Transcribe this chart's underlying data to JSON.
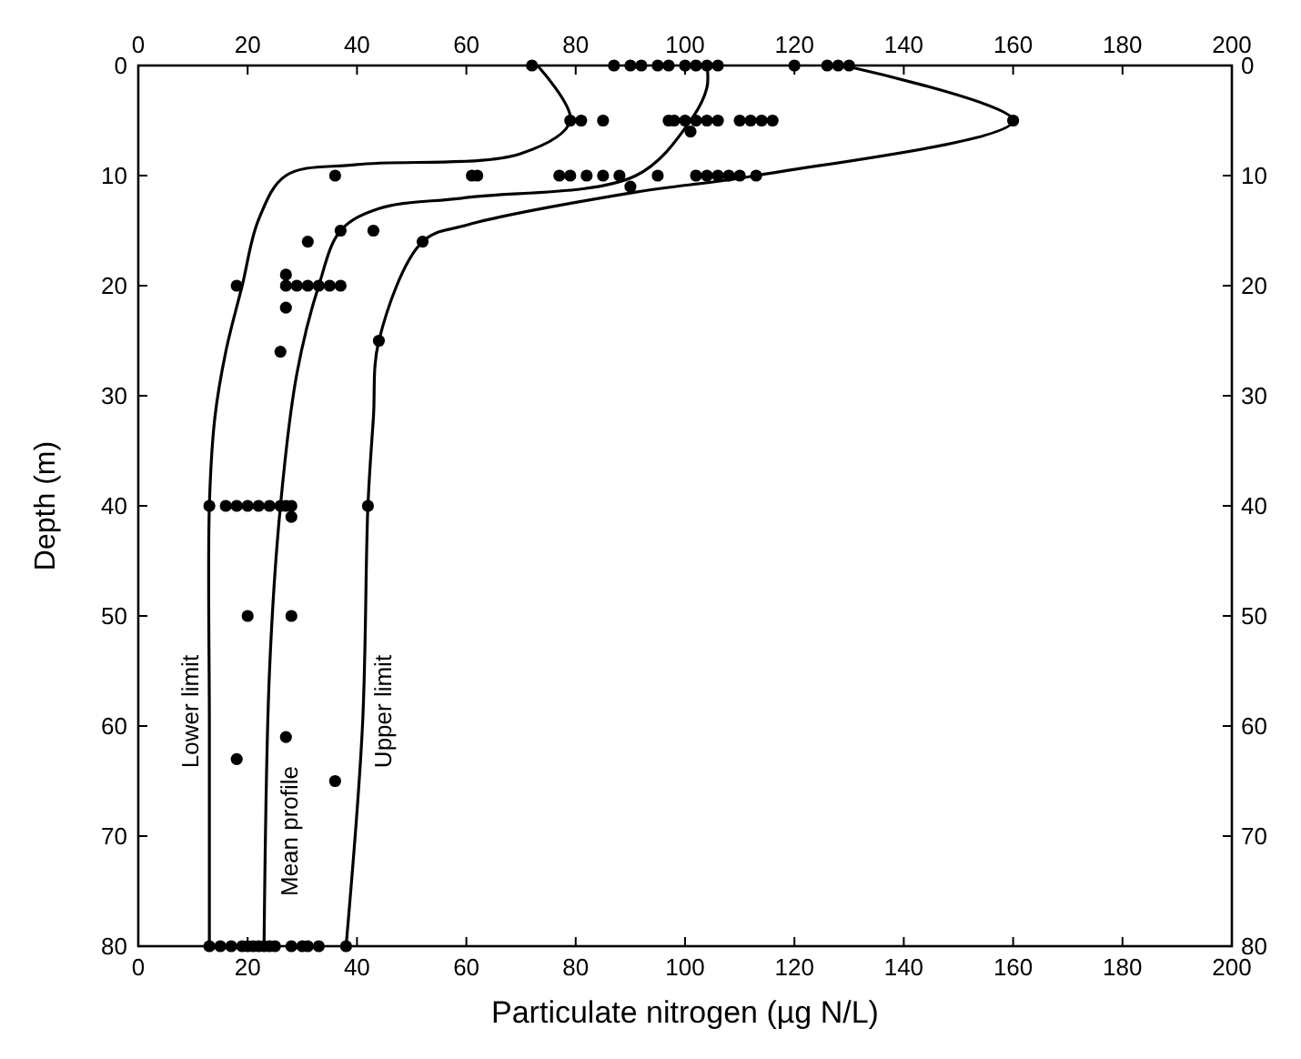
{
  "chart_data": {
    "type": "scatter",
    "xlabel": "Particulate nitrogen (µg N/L)",
    "ylabel": "Depth (m)",
    "xlim": [
      0,
      200
    ],
    "xticks": [
      0,
      20,
      40,
      60,
      80,
      100,
      120,
      140,
      160,
      180,
      200
    ],
    "x2lim": [
      0,
      200
    ],
    "x2ticks": [
      0,
      20,
      40,
      60,
      80,
      100,
      120,
      140,
      160,
      180,
      200
    ],
    "ylim": [
      80,
      0
    ],
    "yticks": [
      0,
      10,
      20,
      30,
      40,
      50,
      60,
      70,
      80
    ],
    "y2lim": [
      80,
      0
    ],
    "y2ticks": [
      0,
      10,
      20,
      30,
      40,
      50,
      60,
      70,
      80
    ],
    "grid": false,
    "series": [
      {
        "color": "#000000",
        "marker": "circle",
        "x": [
          72,
          87,
          90,
          92,
          95,
          97,
          100,
          102,
          104,
          106,
          120,
          126,
          128,
          130,
          79,
          81,
          85,
          97,
          98,
          100,
          102,
          104,
          106,
          110,
          112,
          114,
          116,
          160,
          101,
          36,
          61,
          62,
          77,
          79,
          82,
          85,
          88,
          95,
          102,
          104,
          106,
          108,
          110,
          113,
          90,
          31,
          37,
          43,
          52,
          27,
          18,
          27,
          29,
          31,
          33,
          35,
          37,
          27,
          44,
          26,
          13,
          16,
          18,
          20,
          22,
          24,
          26,
          27,
          28,
          42,
          28,
          20,
          28,
          18,
          27,
          36,
          13,
          15,
          17,
          19,
          20,
          21,
          22,
          23,
          24,
          25,
          28,
          30,
          31,
          33,
          38
        ],
        "values": [
          0,
          0,
          0,
          0,
          0,
          0,
          0,
          0,
          0,
          0,
          0,
          0,
          0,
          0,
          5,
          5,
          5,
          5,
          5,
          5,
          5,
          5,
          5,
          5,
          5,
          5,
          5,
          5,
          6,
          10,
          10,
          10,
          10,
          10,
          10,
          10,
          10,
          10,
          10,
          10,
          10,
          10,
          10,
          10,
          11,
          16,
          15,
          15,
          16,
          19,
          20,
          20,
          20,
          20,
          20,
          20,
          20,
          22,
          25,
          26,
          40,
          40,
          40,
          40,
          40,
          40,
          40,
          40,
          40,
          40,
          41,
          50,
          50,
          63,
          61,
          65,
          80,
          80,
          80,
          80,
          80,
          80,
          80,
          80,
          80,
          80,
          80,
          80,
          80,
          80,
          80
        ]
      },
      {
        "type": "line",
        "name": "Lower limit",
        "color": "#000000",
        "marker": "none",
        "line_style": "solid",
        "x": [
          73,
          79,
          70,
          40,
          27,
          22,
          19,
          16,
          14,
          13,
          13,
          13
        ],
        "values": [
          0,
          5,
          8,
          9,
          10,
          14,
          20,
          26,
          32,
          40,
          60,
          80
        ]
      },
      {
        "type": "line",
        "name": "Mean profile",
        "color": "#000000",
        "marker": "none",
        "line_style": "solid",
        "x": [
          104,
          104,
          101,
          91,
          60,
          44,
          37,
          33,
          29,
          26,
          24,
          23
        ],
        "values": [
          0,
          2,
          5,
          10,
          12,
          13,
          15,
          20,
          28,
          40,
          55,
          80
        ]
      },
      {
        "type": "line",
        "name": "Upper limit",
        "color": "#000000",
        "marker": "none",
        "line_style": "solid",
        "x": [
          129,
          160,
          113,
          91,
          60,
          52,
          44,
          43,
          42,
          41,
          38
        ],
        "values": [
          0,
          5,
          10,
          11.5,
          14.5,
          16,
          25,
          32,
          40,
          60,
          80
        ]
      }
    ]
  }
}
